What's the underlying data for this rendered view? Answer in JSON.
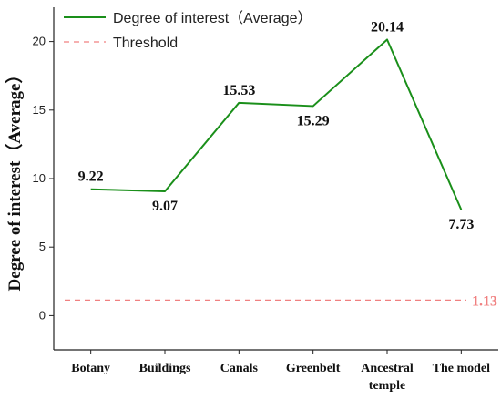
{
  "chart_data": {
    "type": "line",
    "categories": [
      "Botany",
      "Buildings",
      "Canals",
      "Greenbelt",
      "Ancestral temple",
      "The model"
    ],
    "series": [
      {
        "name": "Degree of interest（Average）",
        "values": [
          9.22,
          9.07,
          15.53,
          15.29,
          20.14,
          7.73
        ],
        "color": "#1a8f1a",
        "style": "solid"
      },
      {
        "name": "Threshold",
        "values": [
          1.13,
          1.13,
          1.13,
          1.13,
          1.13,
          1.13
        ],
        "color": "#f08080",
        "style": "dashed"
      }
    ],
    "data_labels": [
      "9.22",
      "9.07",
      "15.53",
      "15.29",
      "20.14",
      "7.73"
    ],
    "threshold_label": "1.13",
    "ylabel": "Degree of interest（Average）",
    "xlabel": "",
    "ylim": [
      -2.5,
      22.5
    ],
    "yticks": [
      0,
      5,
      10,
      15,
      20
    ],
    "grid": false,
    "legend_position": "top-left"
  }
}
